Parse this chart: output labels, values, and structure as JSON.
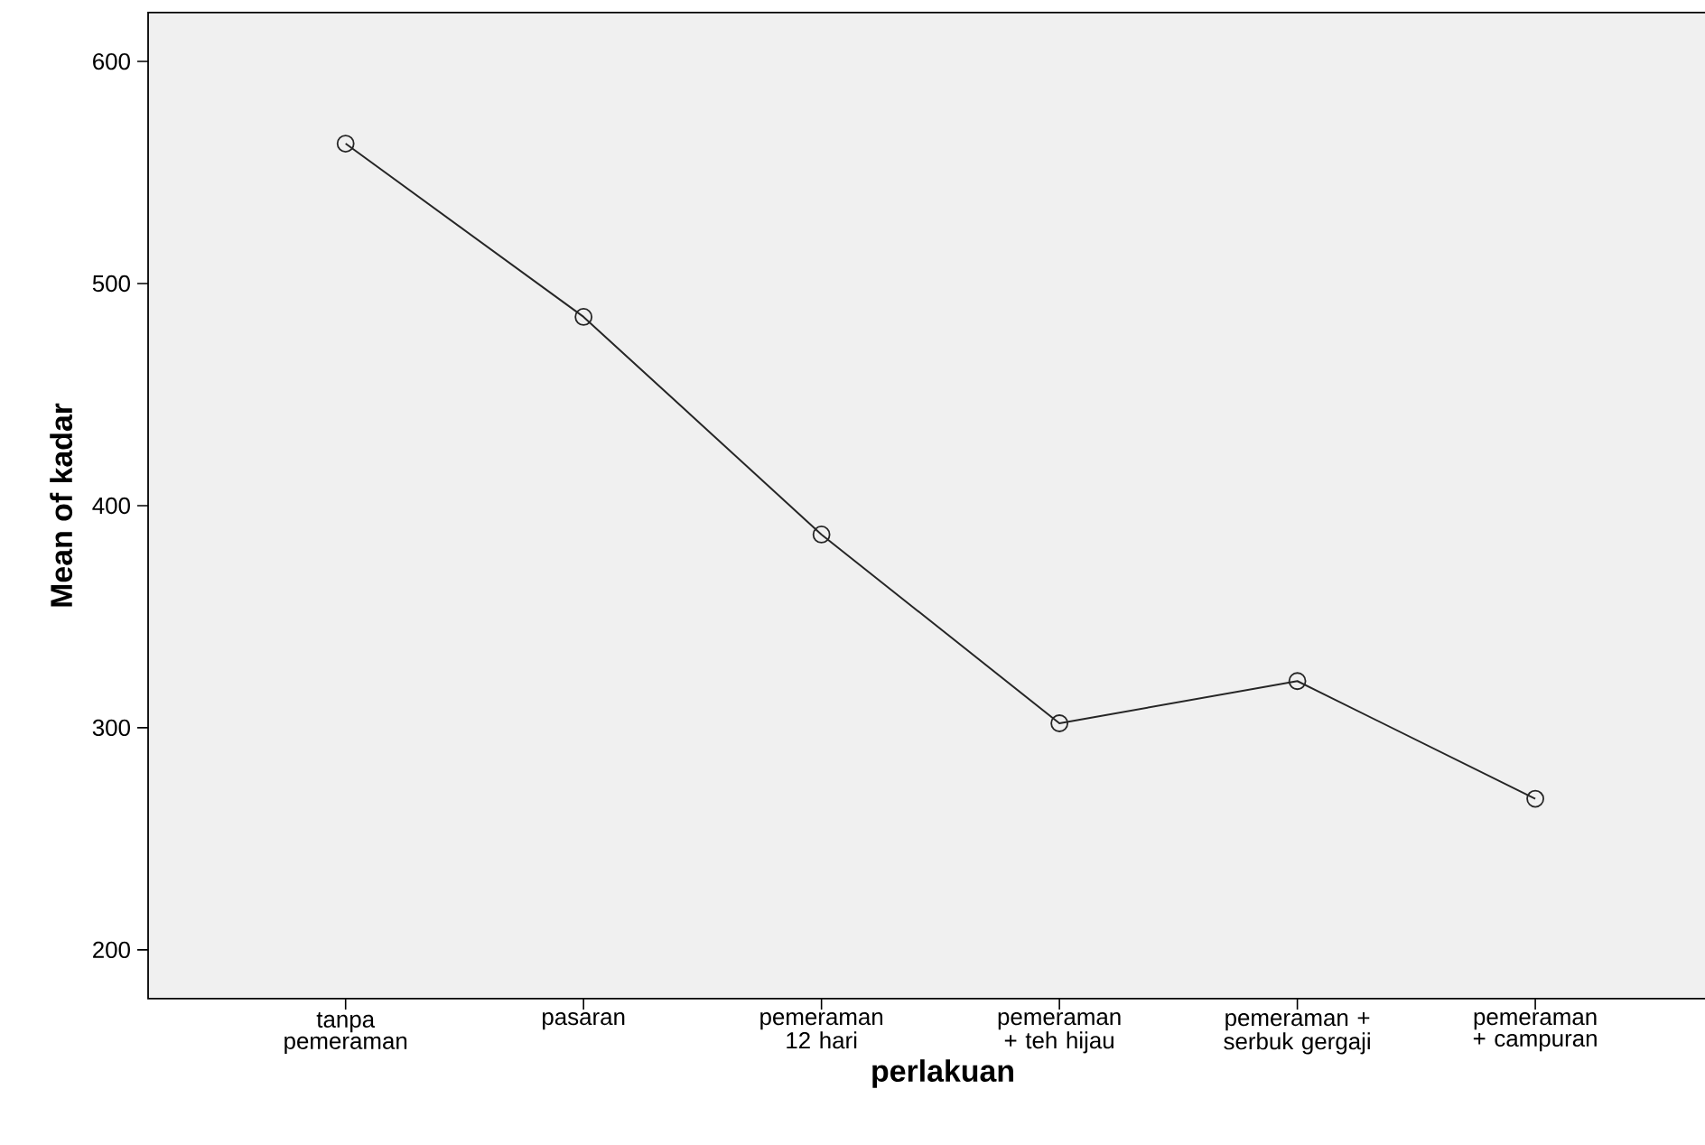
{
  "chart_data": {
    "type": "line",
    "xlabel": "perlakuan",
    "ylabel": "Mean of kadar",
    "categories": [
      "tanpa pemeraman",
      "pasaran",
      "pemeraman 12 hari",
      "pemeraman + teh hijau",
      "pemeraman + serbuk gergaji",
      "pemeraman + campuran"
    ],
    "values": [
      563,
      485,
      387,
      302,
      321,
      268
    ],
    "color": "#262626",
    "marker": "circle",
    "line_style": "solid",
    "ylim": [
      178,
      622
    ],
    "yticks": [
      200,
      300,
      400,
      500,
      600
    ],
    "grid": false
  }
}
